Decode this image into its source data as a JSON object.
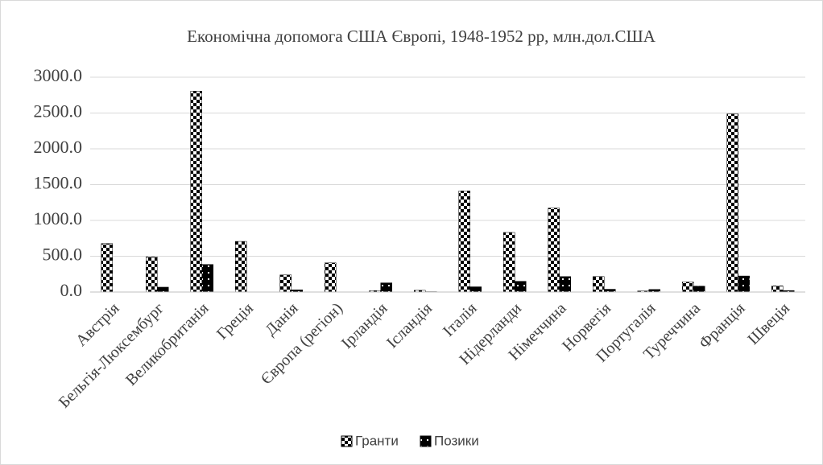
{
  "chart_data": {
    "type": "bar",
    "title": "Економічна допомога США Європі, 1948-1952  рр, млн.дол.США",
    "categories": [
      "Австрія",
      "Бельгія-Люксембург",
      "Великобританія",
      "Греція",
      "Данія",
      "Європа (регіон)",
      "Ірландія",
      "Ісландія",
      "Італія",
      "Нідерланди",
      "Німеччина",
      "Норвегія",
      "Португалія",
      "Туреччина",
      "Франція",
      "Швеція"
    ],
    "series": [
      {
        "name": "Гранти",
        "color": "#000000",
        "values": [
          677,
          491,
          2806,
          707,
          239,
          407,
          19,
          24,
          1413,
          832,
          1173,
          216,
          15,
          140,
          2488,
          86
        ]
      },
      {
        "name": "Позики",
        "color": "#000000",
        "values": [
          null,
          68,
          385,
          null,
          31,
          null,
          128,
          5,
          73,
          150,
          216,
          39,
          36,
          83,
          224,
          21
        ]
      }
    ],
    "ylim": [
      0,
      3000
    ],
    "yticks": [
      {
        "value": 0,
        "label": "0.0"
      },
      {
        "value": 500,
        "label": "500.0"
      },
      {
        "value": 1000,
        "label": "1000.0"
      },
      {
        "value": 1500,
        "label": "1500.0"
      },
      {
        "value": 2000,
        "label": "2000.0"
      },
      {
        "value": 2500,
        "label": "2500.0"
      },
      {
        "value": 3000,
        "label": "3000.0"
      }
    ],
    "grid": true,
    "legend": "bottom"
  }
}
